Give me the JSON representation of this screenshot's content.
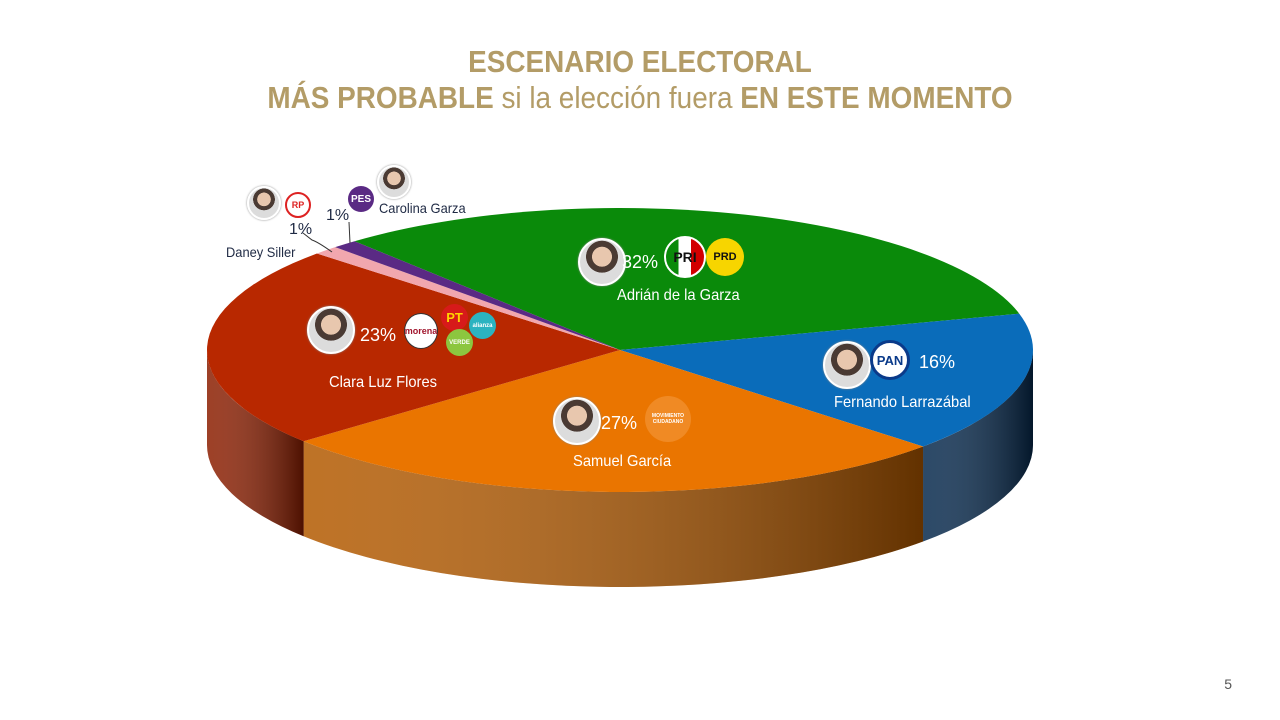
{
  "title": {
    "line1": "ESCENARIO ELECTORAL",
    "line2_bold1": "MÁS PROBABLE",
    "line2_mid": " si la elección fuera ",
    "line2_bold2": "EN ESTE MOMENTO"
  },
  "page_number": "5",
  "chart_data": {
    "type": "pie",
    "style": "3d",
    "title": "ESCENARIO ELECTORAL MÁS PROBABLE si la elección fuera EN ESTE MOMENTO",
    "slices": [
      {
        "name": "Adrián de la Garza",
        "value": 32,
        "label": "32%",
        "parties": [
          "PRI",
          "PRD"
        ],
        "color": "#0a8a0a",
        "side": "#055405"
      },
      {
        "name": "Fernando Larrazábal",
        "value": 16,
        "label": "16%",
        "parties": [
          "PAN"
        ],
        "color": "#0a6cba",
        "side": "#06294d"
      },
      {
        "name": "Samuel García",
        "value": 27,
        "label": "27%",
        "parties": [
          "MOVIMIENTO CIUDADANO"
        ],
        "color": "#ea7500",
        "side": "#b35a00"
      },
      {
        "name": "Clara Luz Flores",
        "value": 23,
        "label": "23%",
        "parties": [
          "morena",
          "PT",
          "VERDE",
          "alianza"
        ],
        "color": "#b82800",
        "side": "#8c1e00"
      },
      {
        "name": "Daney Siller",
        "value": 1,
        "label": "1%",
        "parties": [
          "RP"
        ],
        "color": "#f1a7ae",
        "side": "#c98b90"
      },
      {
        "name": "Carolina Garza",
        "value": 1,
        "label": "1%",
        "parties": [
          "PES"
        ],
        "color": "#5a2a84",
        "side": "#3e1d5c"
      }
    ]
  }
}
